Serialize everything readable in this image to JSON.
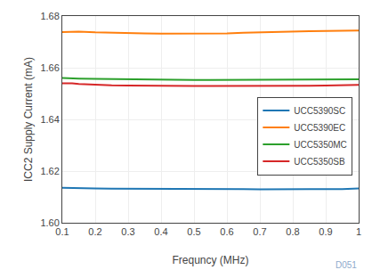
{
  "chart_data": {
    "type": "line",
    "title": "",
    "xlabel": "Frequncy (MHz)",
    "ylabel": "ICC2 Supply Current (mA)",
    "xlim": [
      0.1,
      1.0
    ],
    "ylim": [
      1.6,
      1.68
    ],
    "xticks": [
      0.1,
      0.2,
      0.3,
      0.4,
      0.5,
      0.6,
      0.7,
      0.8,
      0.9,
      1
    ],
    "yticks": [
      {
        "value": 1.6,
        "label": "1.60"
      },
      1.62,
      1.64,
      1.66,
      1.68
    ],
    "x": [
      0.1,
      0.13,
      0.15,
      0.2,
      0.25,
      0.3,
      0.35,
      0.4,
      0.45,
      0.5,
      0.55,
      0.6,
      0.65,
      0.7,
      0.75,
      0.8,
      0.85,
      0.9,
      0.95,
      1.0
    ],
    "series": [
      {
        "name": "UCC5390SC",
        "values": [
          1.6135,
          1.6135,
          1.6133,
          1.6133,
          1.6132,
          1.6132,
          1.6131,
          1.613,
          1.613,
          1.613,
          1.613,
          1.613,
          1.613,
          1.6129,
          1.613,
          1.613,
          1.613,
          1.613,
          1.613,
          1.6133
        ]
      },
      {
        "name": "UCC5390EC",
        "values": [
          1.6738,
          1.674,
          1.674,
          1.6737,
          1.6735,
          1.6734,
          1.6733,
          1.6732,
          1.6732,
          1.6732,
          1.6732,
          1.6733,
          1.6735,
          1.6737,
          1.6739,
          1.674,
          1.6741,
          1.6742,
          1.6743,
          1.6744
        ]
      },
      {
        "name": "UCC5350MC",
        "values": [
          1.656,
          1.656,
          1.6558,
          1.6557,
          1.6556,
          1.6555,
          1.6554,
          1.6553,
          1.6553,
          1.6553,
          1.6553,
          1.6553,
          1.6553,
          1.6553,
          1.6553,
          1.6553,
          1.6553,
          1.6553,
          1.6554,
          1.6555
        ]
      },
      {
        "name": "UCC5350SB",
        "values": [
          1.654,
          1.654,
          1.6537,
          1.6534,
          1.6532,
          1.6531,
          1.653,
          1.6529,
          1.6529,
          1.6529,
          1.6529,
          1.6529,
          1.6529,
          1.6528,
          1.6529,
          1.653,
          1.653,
          1.6531,
          1.6532,
          1.6534
        ]
      }
    ],
    "annotation": "D051",
    "grid": true,
    "legend": "right"
  }
}
